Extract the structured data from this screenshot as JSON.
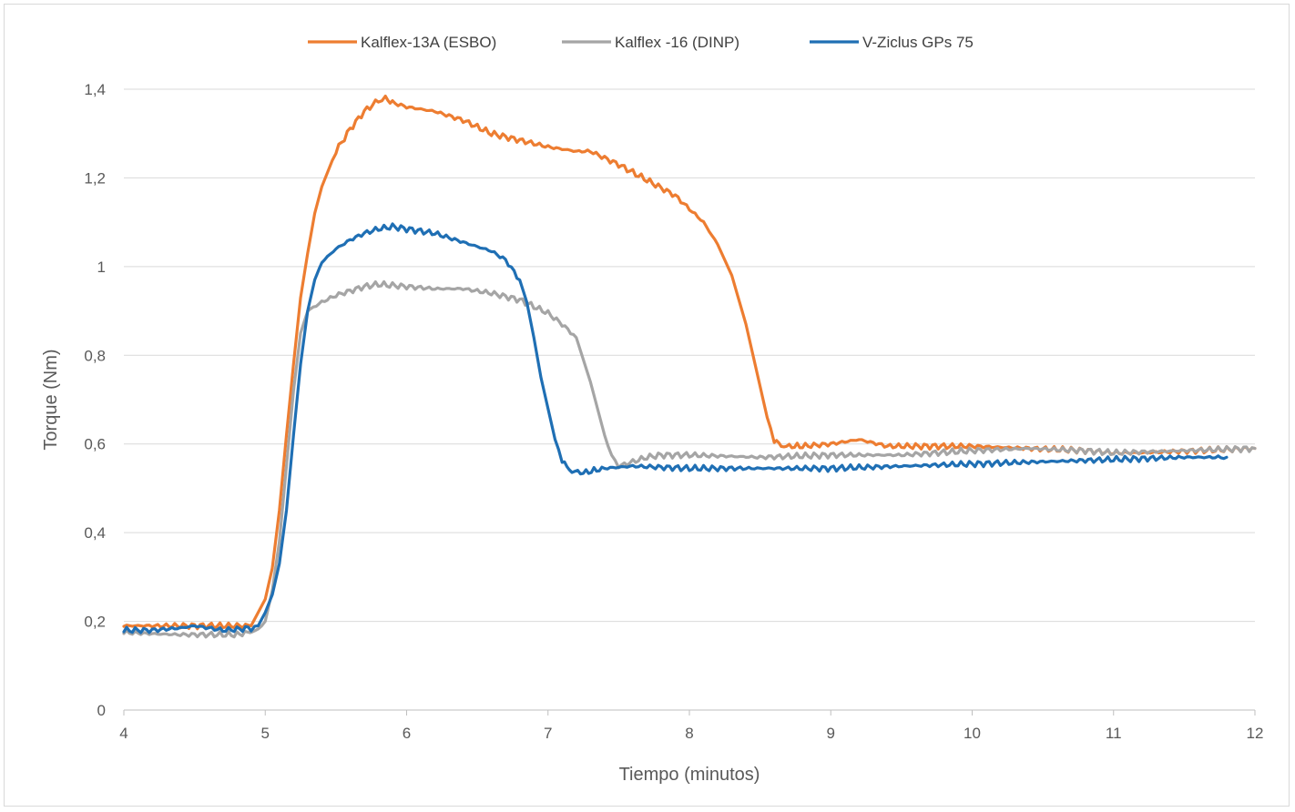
{
  "chart_data": {
    "type": "line",
    "title": "",
    "xlabel": "Tiempo (minutos)",
    "ylabel": "Torque (Nm)",
    "xlim": [
      4,
      12
    ],
    "ylim": [
      0,
      1.4
    ],
    "x_ticks": [
      "4",
      "5",
      "6",
      "7",
      "8",
      "9",
      "10",
      "11",
      "12"
    ],
    "y_ticks": [
      "0",
      "0,2",
      "0,4",
      "0,6",
      "0,8",
      "1",
      "1,2",
      "1,4"
    ],
    "grid": "horizontal",
    "legend_position": "top",
    "series": [
      {
        "name": "Kalflex-13A (ESBO)",
        "color": "#ED7D31",
        "points": [
          [
            4.0,
            0.19
          ],
          [
            4.2,
            0.19
          ],
          [
            4.4,
            0.19
          ],
          [
            4.6,
            0.19
          ],
          [
            4.8,
            0.19
          ],
          [
            4.9,
            0.19
          ],
          [
            5.0,
            0.25
          ],
          [
            5.05,
            0.32
          ],
          [
            5.1,
            0.45
          ],
          [
            5.15,
            0.62
          ],
          [
            5.2,
            0.78
          ],
          [
            5.25,
            0.93
          ],
          [
            5.3,
            1.03
          ],
          [
            5.35,
            1.12
          ],
          [
            5.4,
            1.18
          ],
          [
            5.45,
            1.22
          ],
          [
            5.5,
            1.26
          ],
          [
            5.6,
            1.31
          ],
          [
            5.7,
            1.35
          ],
          [
            5.8,
            1.375
          ],
          [
            5.85,
            1.38
          ],
          [
            5.9,
            1.37
          ],
          [
            6.0,
            1.36
          ],
          [
            6.2,
            1.35
          ],
          [
            6.4,
            1.33
          ],
          [
            6.6,
            1.3
          ],
          [
            6.8,
            1.285
          ],
          [
            7.0,
            1.27
          ],
          [
            7.2,
            1.26
          ],
          [
            7.3,
            1.26
          ],
          [
            7.5,
            1.23
          ],
          [
            7.7,
            1.195
          ],
          [
            7.9,
            1.16
          ],
          [
            8.0,
            1.13
          ],
          [
            8.1,
            1.1
          ],
          [
            8.2,
            1.05
          ],
          [
            8.3,
            0.98
          ],
          [
            8.4,
            0.87
          ],
          [
            8.45,
            0.8
          ],
          [
            8.5,
            0.73
          ],
          [
            8.55,
            0.66
          ],
          [
            8.6,
            0.61
          ],
          [
            8.65,
            0.595
          ],
          [
            8.8,
            0.595
          ],
          [
            9.0,
            0.6
          ],
          [
            9.2,
            0.61
          ],
          [
            9.4,
            0.595
          ],
          [
            9.6,
            0.595
          ],
          [
            10.0,
            0.595
          ],
          [
            10.4,
            0.59
          ],
          [
            10.8,
            0.585
          ],
          [
            11.0,
            0.58
          ],
          [
            11.2,
            0.58
          ],
          [
            11.6,
            0.585
          ],
          [
            12.0,
            0.59
          ]
        ]
      },
      {
        "name": "Kalflex -16 (DINP)",
        "color": "#A5A5A5",
        "points": [
          [
            4.0,
            0.175
          ],
          [
            4.2,
            0.172
          ],
          [
            4.4,
            0.17
          ],
          [
            4.6,
            0.17
          ],
          [
            4.8,
            0.17
          ],
          [
            4.95,
            0.18
          ],
          [
            5.0,
            0.2
          ],
          [
            5.05,
            0.27
          ],
          [
            5.1,
            0.38
          ],
          [
            5.15,
            0.55
          ],
          [
            5.2,
            0.72
          ],
          [
            5.25,
            0.85
          ],
          [
            5.3,
            0.9
          ],
          [
            5.4,
            0.92
          ],
          [
            5.5,
            0.935
          ],
          [
            5.6,
            0.945
          ],
          [
            5.7,
            0.955
          ],
          [
            5.8,
            0.96
          ],
          [
            6.0,
            0.955
          ],
          [
            6.2,
            0.95
          ],
          [
            6.4,
            0.95
          ],
          [
            6.6,
            0.94
          ],
          [
            6.8,
            0.925
          ],
          [
            6.9,
            0.91
          ],
          [
            7.0,
            0.895
          ],
          [
            7.1,
            0.87
          ],
          [
            7.2,
            0.84
          ],
          [
            7.25,
            0.79
          ],
          [
            7.3,
            0.74
          ],
          [
            7.35,
            0.68
          ],
          [
            7.4,
            0.62
          ],
          [
            7.45,
            0.57
          ],
          [
            7.5,
            0.55
          ],
          [
            7.6,
            0.56
          ],
          [
            7.7,
            0.57
          ],
          [
            7.8,
            0.575
          ],
          [
            8.0,
            0.575
          ],
          [
            8.5,
            0.57
          ],
          [
            9.0,
            0.575
          ],
          [
            9.5,
            0.575
          ],
          [
            10.0,
            0.585
          ],
          [
            10.4,
            0.59
          ],
          [
            10.8,
            0.585
          ],
          [
            11.0,
            0.58
          ],
          [
            11.5,
            0.585
          ],
          [
            12.0,
            0.59
          ]
        ]
      },
      {
        "name": "V-Ziclus GPs 75",
        "color": "#1F6FB4",
        "points": [
          [
            4.0,
            0.18
          ],
          [
            4.2,
            0.18
          ],
          [
            4.4,
            0.185
          ],
          [
            4.5,
            0.19
          ],
          [
            4.6,
            0.185
          ],
          [
            4.7,
            0.18
          ],
          [
            4.8,
            0.182
          ],
          [
            4.9,
            0.185
          ],
          [
            4.95,
            0.19
          ],
          [
            5.0,
            0.22
          ],
          [
            5.05,
            0.26
          ],
          [
            5.1,
            0.33
          ],
          [
            5.15,
            0.45
          ],
          [
            5.2,
            0.62
          ],
          [
            5.25,
            0.78
          ],
          [
            5.3,
            0.9
          ],
          [
            5.35,
            0.97
          ],
          [
            5.4,
            1.01
          ],
          [
            5.5,
            1.04
          ],
          [
            5.6,
            1.06
          ],
          [
            5.7,
            1.075
          ],
          [
            5.8,
            1.085
          ],
          [
            5.9,
            1.09
          ],
          [
            6.0,
            1.085
          ],
          [
            6.2,
            1.075
          ],
          [
            6.4,
            1.055
          ],
          [
            6.6,
            1.035
          ],
          [
            6.7,
            1.015
          ],
          [
            6.8,
            0.97
          ],
          [
            6.85,
            0.92
          ],
          [
            6.9,
            0.84
          ],
          [
            6.95,
            0.75
          ],
          [
            7.0,
            0.68
          ],
          [
            7.05,
            0.61
          ],
          [
            7.1,
            0.565
          ],
          [
            7.15,
            0.54
          ],
          [
            7.25,
            0.535
          ],
          [
            7.4,
            0.545
          ],
          [
            7.6,
            0.55
          ],
          [
            8.0,
            0.545
          ],
          [
            8.5,
            0.545
          ],
          [
            9.0,
            0.545
          ],
          [
            9.5,
            0.55
          ],
          [
            10.0,
            0.555
          ],
          [
            10.5,
            0.56
          ],
          [
            11.0,
            0.565
          ],
          [
            11.5,
            0.57
          ],
          [
            11.8,
            0.57
          ]
        ]
      }
    ]
  }
}
